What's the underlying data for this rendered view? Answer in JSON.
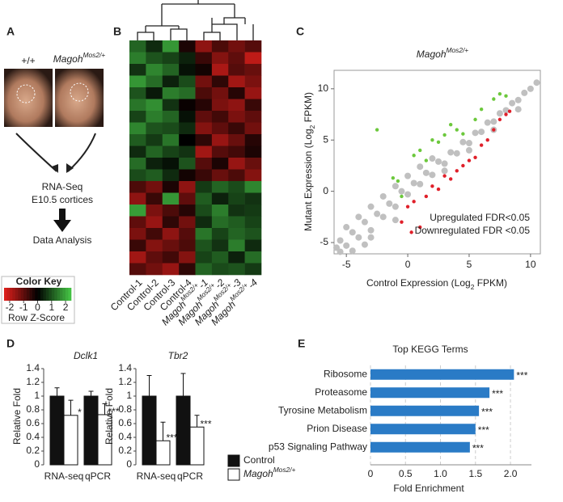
{
  "panel_labels": [
    "A",
    "B",
    "C",
    "D",
    "E"
  ],
  "diagram": {
    "genotypes": [
      "+/+",
      {
        "base": "Magoh",
        "sup": "Mos2/+"
      }
    ],
    "steps": [
      "RNA-Seq",
      "E10.5 cortices",
      "Data Analysis"
    ]
  },
  "chart_data": [
    {
      "type": "heatmap",
      "categories": [
        "Control-1",
        "Control-2",
        "Control-3",
        "Control-4",
        {
          "base": "Magoh",
          "sup": "Mos2/+",
          "tail": "-1"
        },
        {
          "base": "Magoh",
          "sup": "Mos2/+",
          "tail": "-2"
        },
        {
          "base": "Magoh",
          "sup": "Mos2/+",
          "tail": "-3"
        },
        {
          "base": "Magoh",
          "sup": "Mos2/+",
          "tail": "-4"
        }
      ],
      "rows": [
        [
          1.2,
          0.5,
          1.8,
          -0.3,
          -1.5,
          -0.8,
          -1.2,
          -0.9
        ],
        [
          1.5,
          1.0,
          0.8,
          0.4,
          -0.6,
          -1.4,
          -1.0,
          -2.0
        ],
        [
          0.6,
          1.6,
          1.2,
          0.2,
          -0.2,
          -1.8,
          -0.9,
          -1.1
        ],
        [
          1.8,
          1.3,
          0.4,
          0.9,
          -1.2,
          -0.5,
          -1.7,
          -1.3
        ],
        [
          1.0,
          0.3,
          1.5,
          1.3,
          -0.8,
          -1.2,
          -0.4,
          -1.6
        ],
        [
          1.4,
          1.7,
          0.6,
          -0.1,
          -0.4,
          -1.3,
          -1.5,
          -0.6
        ],
        [
          0.8,
          1.5,
          1.2,
          0.2,
          -1.0,
          -0.7,
          -1.3,
          -1.0
        ],
        [
          1.6,
          1.0,
          0.9,
          0.5,
          -1.4,
          -1.0,
          -0.6,
          -1.2
        ],
        [
          1.1,
          0.7,
          1.4,
          0.0,
          -0.5,
          -1.6,
          -1.1,
          -0.4
        ],
        [
          0.5,
          1.2,
          0.8,
          0.6,
          -1.7,
          -0.9,
          -0.7,
          -0.3
        ],
        [
          1.3,
          0.4,
          0.2,
          1.0,
          -0.9,
          -0.3,
          -1.6,
          -1.1
        ],
        [
          0.9,
          1.1,
          0.5,
          -0.2,
          -0.6,
          -1.1,
          -0.8,
          -1.4
        ],
        [
          -0.8,
          -1.2,
          -0.3,
          -1.5,
          0.7,
          1.2,
          0.9,
          1.6
        ],
        [
          -1.5,
          -0.6,
          1.8,
          -1.0,
          1.1,
          0.4,
          0.8,
          0.6
        ],
        [
          1.9,
          -1.3,
          -0.8,
          -0.4,
          0.9,
          1.5,
          0.6,
          0.7
        ],
        [
          -1.0,
          -1.6,
          -0.5,
          -1.2,
          0.5,
          1.3,
          1.1,
          0.8
        ],
        [
          -1.3,
          -0.7,
          -1.5,
          -0.9,
          1.4,
          0.8,
          1.2,
          1.0
        ],
        [
          -0.6,
          -1.4,
          -1.1,
          -0.8,
          1.0,
          0.6,
          1.5,
          0.5
        ],
        [
          -1.7,
          -1.0,
          -0.7,
          -1.4,
          0.8,
          1.1,
          0.4,
          1.3
        ],
        [
          -0.9,
          -1.2,
          -1.6,
          -0.5,
          1.2,
          0.9,
          1.0,
          0.7
        ]
      ],
      "colors": {
        "low": "#e3201c",
        "mid": "#000000",
        "high": "#46c846"
      },
      "color_key": {
        "title": "Color Key",
        "label": "Row Z-Score",
        "lim": [
          -2.4,
          2.4
        ],
        "ticks": [
          -2,
          -1,
          0,
          1,
          2
        ]
      }
    },
    {
      "type": "scatter",
      "title": {
        "base": "Magoh",
        "sup": "Mos2/+"
      },
      "x_label": {
        "base": "Control Expression (Log",
        "sub": "2",
        "tail": " FPKM)"
      },
      "y_label": {
        "base": "Mutant Expression (Log",
        "sub": "2",
        "tail": " FPKM)"
      },
      "xlim": [
        -6,
        10.8
      ],
      "ylim": [
        -6.1,
        11.8
      ],
      "xticks": [
        -5,
        0,
        5,
        10
      ],
      "yticks": [
        -5,
        0,
        5,
        10
      ],
      "series": [
        {
          "color": "#c0c0c0",
          "x": [
            -5.8,
            -5.5,
            -5,
            -4.5,
            -4,
            -3.5,
            -3,
            -2.5,
            -2,
            -1.5,
            -1,
            -0.5,
            0,
            0.5,
            1,
            1.5,
            2,
            2.5,
            3,
            3.5,
            4,
            4.5,
            5,
            5.5,
            6,
            6.5,
            7,
            7.5,
            8,
            8.5,
            9,
            9.5,
            10,
            10.5,
            -5,
            -4,
            -3,
            -2,
            -1,
            0,
            1,
            2,
            -5.5,
            -4.5,
            -3.5,
            3,
            5,
            7,
            9,
            -3,
            -1
          ],
          "values": [
            -5.5,
            -4.8,
            -5.3,
            -4,
            -4.5,
            -3,
            -3.8,
            -2.2,
            -2.5,
            -1.2,
            -1.5,
            0,
            -0.3,
            0.8,
            0.7,
            1.8,
            1.6,
            2.9,
            2.7,
            3.8,
            3.7,
            4.8,
            4.7,
            5.7,
            5.8,
            6.7,
            6.8,
            7.6,
            7.9,
            8.6,
            8.9,
            9.6,
            10,
            10.6,
            -3.5,
            -2.5,
            -1.5,
            -0.5,
            0.5,
            1.5,
            2.4,
            3.2,
            -5.9,
            -5.8,
            -5.2,
            2,
            4,
            6,
            8,
            -4.5,
            -2.8
          ]
        },
        {
          "color": "#6cc83c",
          "x": [
            -2.5,
            -1.2,
            -0.8,
            -0.5,
            0.5,
            1,
            1.5,
            2,
            2.5,
            3,
            3.5,
            4,
            4.5,
            5.5,
            6,
            7,
            7.5,
            8
          ],
          "values": [
            6,
            1.3,
            1,
            -0.5,
            3.5,
            4,
            3,
            5,
            4.8,
            5.5,
            6.5,
            6,
            5.6,
            7,
            8,
            9,
            9.5,
            9.3
          ]
        },
        {
          "color": "#e0202a",
          "x": [
            -0.5,
            0,
            0.5,
            1,
            1.5,
            2,
            2.5,
            3,
            3.5,
            4,
            4.5,
            5,
            5.5,
            6,
            6.5,
            7,
            7.5,
            8,
            8.3,
            0.3
          ],
          "values": [
            -3,
            -1.5,
            -1,
            -3.5,
            -0.5,
            0.5,
            0.2,
            1.5,
            1.2,
            2,
            2.5,
            3,
            3.3,
            4.5,
            5,
            6,
            7,
            7.5,
            7.8,
            -4
          ]
        }
      ],
      "annotations": [
        {
          "text": "Upregulated FDR<0.05",
          "color": "#2ea84a"
        },
        {
          "text": "Downregulated FDR <0.05",
          "color": "#e0202a"
        }
      ]
    },
    {
      "type": "bar",
      "title": "Dclk1",
      "y_label": "Relative Fold",
      "categories": [
        "RNA-seq",
        "qPCR"
      ],
      "ylim": [
        0,
        1.4
      ],
      "yticks": [
        0,
        0.2,
        0.4,
        0.6,
        0.8,
        1,
        1.2,
        1.4
      ],
      "series": [
        {
          "color": "#111111",
          "values": [
            1,
            1
          ],
          "errors": [
            0.12,
            0.07
          ]
        },
        {
          "color": "#ffffff",
          "values": [
            0.72,
            0.73
          ],
          "errors": [
            0.22,
            0.16
          ],
          "significance": [
            "*",
            "***"
          ]
        }
      ]
    },
    {
      "type": "bar",
      "title": "Tbr2",
      "y_label": "Relative Fold",
      "categories": [
        "RNA-seq",
        "qPCR"
      ],
      "ylim": [
        0,
        1.4
      ],
      "yticks": [
        0,
        0.2,
        0.4,
        0.6,
        0.8,
        1,
        1.2,
        1.4
      ],
      "series": [
        {
          "name": "Control",
          "color": "#111111",
          "values": [
            1,
            1
          ],
          "errors": [
            0.3,
            0.33
          ]
        },
        {
          "name": {
            "base": "Magoh",
            "sup": "Mos2/+"
          },
          "color": "#ffffff",
          "values": [
            0.35,
            0.55
          ],
          "errors": [
            0.27,
            0.17
          ],
          "significance": [
            "***",
            "***"
          ]
        }
      ]
    },
    {
      "type": "barh",
      "title": "Top KEGG Terms",
      "x_label": "Fold Enrichment",
      "categories": [
        "Ribosome",
        "Proteasome",
        "Tyrosine Metabolism",
        "Prion Disease",
        "p53 Signaling Pathway"
      ],
      "values": [
        2.05,
        1.7,
        1.55,
        1.5,
        1.42
      ],
      "value_labels": [
        "***",
        "***",
        "***",
        "***",
        "***"
      ],
      "color": "#2a7bc6",
      "xlim": [
        0,
        2.3
      ],
      "xticks": [
        0,
        0.5,
        {
          "value": 1,
          "label": "1.0"
        },
        1.5,
        {
          "value": 2,
          "label": "2.0"
        }
      ],
      "grid": true
    }
  ]
}
